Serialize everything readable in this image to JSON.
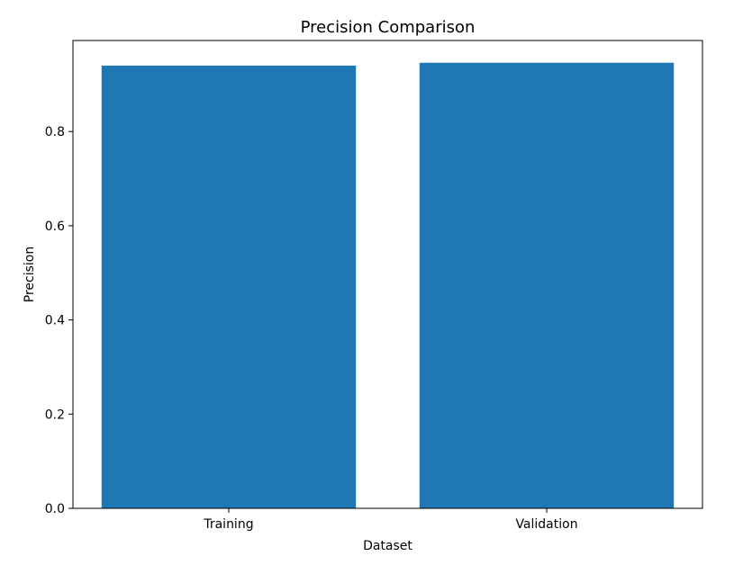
{
  "chart_data": {
    "type": "bar",
    "title": "Precision Comparison",
    "xlabel": "Dataset",
    "ylabel": "Precision",
    "categories": [
      "Training",
      "Validation"
    ],
    "values": [
      0.94,
      0.946
    ],
    "ylim": [
      0,
      0.9933
    ],
    "yticks": [
      0.0,
      0.2,
      0.4,
      0.6,
      0.8
    ],
    "ytick_labels": [
      "0.0",
      "0.2",
      "0.4",
      "0.6",
      "0.8"
    ],
    "grid": false,
    "bar_color": "#1f77b4"
  }
}
